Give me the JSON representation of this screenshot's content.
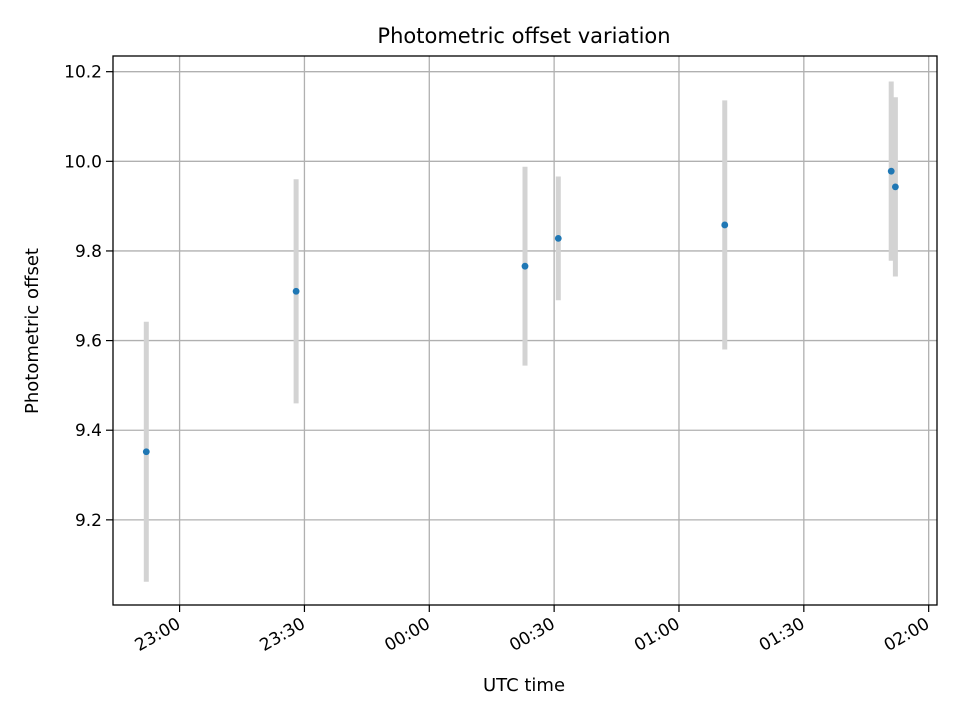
{
  "chart_data": {
    "type": "scatter",
    "title": "Photometric offset variation",
    "xlabel": "UTC time",
    "ylabel": "Photometric offset",
    "xlim": [
      "22:44",
      "02:02"
    ],
    "ylim": [
      9.01,
      10.235
    ],
    "x_ticks": [
      "23:00",
      "23:30",
      "00:00",
      "00:30",
      "01:00",
      "01:30",
      "02:00"
    ],
    "y_ticks": [
      9.2,
      9.4,
      9.6,
      9.8,
      10.0,
      10.2
    ],
    "y_tick_labels": [
      "9.2",
      "9.4",
      "9.6",
      "9.8",
      "10.0",
      "10.2"
    ],
    "grid": true,
    "marker_color": "#1f77b4",
    "errorbar_color": "#d3d3d3",
    "points": [
      {
        "time": "22:52",
        "y": 9.352,
        "yerr": 0.29
      },
      {
        "time": "23:28",
        "y": 9.71,
        "yerr": 0.25
      },
      {
        "time": "00:23",
        "y": 9.766,
        "yerr": 0.222
      },
      {
        "time": "00:31",
        "y": 9.828,
        "yerr": 0.138
      },
      {
        "time": "01:11",
        "y": 9.858,
        "yerr": 0.278
      },
      {
        "time": "01:51",
        "y": 9.978,
        "yerr": 0.2
      },
      {
        "time": "01:52",
        "y": 9.943,
        "yerr": 0.2
      }
    ]
  }
}
